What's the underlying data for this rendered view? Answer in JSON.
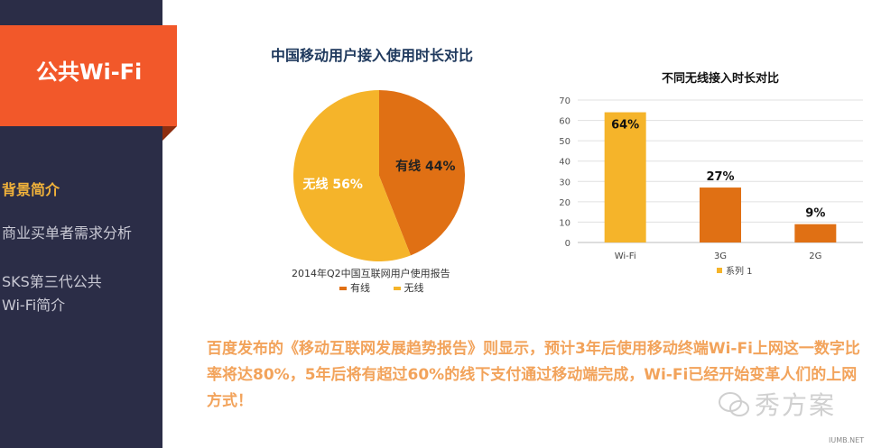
{
  "sidebar": {
    "section_title": "公共Wi-Fi",
    "nav_items": [
      "背景简介",
      "商业买单者需求分析",
      "SKS第三代公共\nWi-Fi简介"
    ]
  },
  "pie_title": "中国移动用户接入使用时长对比",
  "bar_title": "不同无线接入时长对比",
  "chart_data": [
    {
      "type": "pie",
      "title": "中国移动用户接入使用时长对比",
      "caption": "2014年Q2中国互联网用户使用报告",
      "slices": [
        {
          "name": "有线",
          "value": 44,
          "label": "有线  44%",
          "color": "#e07014"
        },
        {
          "name": "无线",
          "value": 56,
          "label": "无线  56%",
          "color": "#f5b42a"
        }
      ],
      "legend": [
        "有线",
        "无线"
      ],
      "legend_placement": "bottom"
    },
    {
      "type": "bar",
      "title": "不同无线接入时长对比",
      "categories": [
        "Wi-Fi",
        "3G",
        "2G"
      ],
      "series": [
        {
          "name": "系列 1",
          "values": [
            64,
            27,
            9
          ]
        }
      ],
      "data_labels": [
        "64%",
        "27%",
        "9%"
      ],
      "bar_colors": [
        "#f5b42a",
        "#e07014",
        "#e07014"
      ],
      "ylim": [
        0,
        70
      ],
      "yticks": [
        0,
        10,
        20,
        30,
        40,
        50,
        60,
        70
      ],
      "grid": true,
      "legend_placement": "bottom"
    }
  ],
  "body_text": "百度发布的《移动互联网发展趋势报告》则显示，预计3年后使用移动终端Wi-Fi上网这一数字比率将达80%，5年后将有超过60%的线下支付通过移动端完成，Wi-Fi已经开始变革人们的上网方式！",
  "watermark": "秀方案",
  "site_mark": "IUMB.NET",
  "colors": {
    "sidebar_bg": "#2b2d47",
    "accent_orange": "#f2582a",
    "highlight": "#f1b23a",
    "text_orange": "#f2a35b"
  }
}
